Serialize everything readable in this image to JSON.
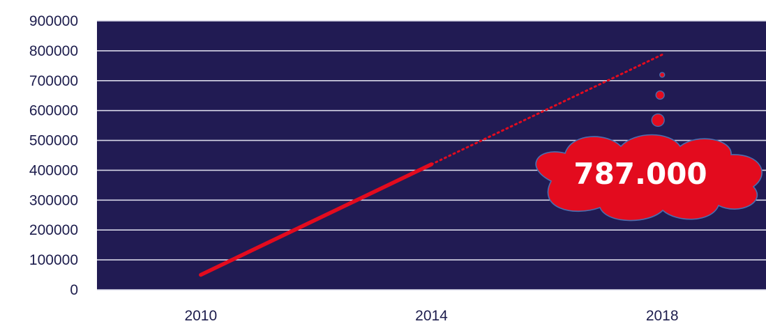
{
  "chart_data": {
    "type": "line",
    "x": [
      2010,
      2014,
      2018
    ],
    "xlim": [
      2008.2,
      2019.8
    ],
    "ylim": [
      0,
      900000
    ],
    "y_ticks": [
      "0",
      "100000",
      "200000",
      "300000",
      "400000",
      "500000",
      "600000",
      "700000",
      "800000",
      "900000"
    ],
    "x_ticks": [
      "2010",
      "2014",
      "2018"
    ],
    "grid": true,
    "series": [
      {
        "style": "solid",
        "points": [
          [
            2010,
            50000
          ],
          [
            2014,
            420000
          ]
        ]
      },
      {
        "style": "dotted",
        "points": [
          [
            2014,
            420000
          ],
          [
            2018,
            787000
          ]
        ]
      }
    ],
    "annotation": {
      "text": "787.000",
      "at_x": 2018,
      "at_y": 787000
    },
    "colors": {
      "plot_background": "#211b53",
      "line": "#e30b1e",
      "grid": "#d8d8e8",
      "axis_text": "#1d1d4d",
      "cloud": "#e30b1e",
      "cloud_stroke": "#4a6fb0"
    }
  }
}
